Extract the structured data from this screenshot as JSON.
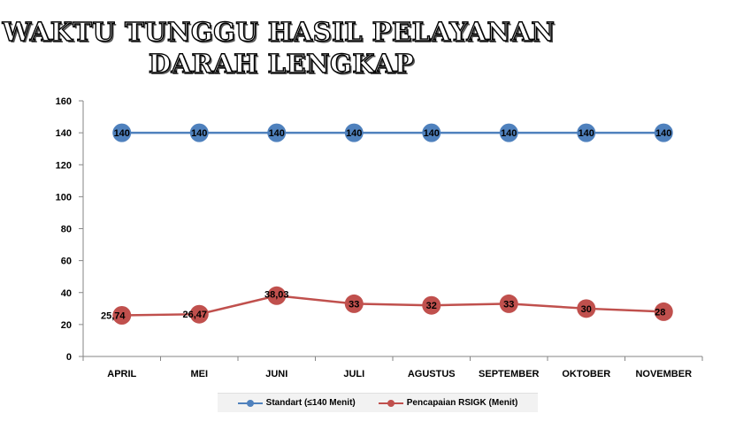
{
  "chart_data": {
    "type": "line",
    "title_lines": [
      "WAKTU TUNGGU HASIL PELAYANAN",
      "DARAH LENGKAP"
    ],
    "categories": [
      "APRIL",
      "MEI",
      "JUNI",
      "JULI",
      "AGUSTUS",
      "SEPTEMBER",
      "OKTOBER",
      "NOVEMBER"
    ],
    "ylim": [
      0,
      160
    ],
    "yticks": [
      "0",
      "20",
      "40",
      "60",
      "80",
      "100",
      "120",
      "140",
      "160"
    ],
    "grid": false,
    "legend_position": "bottom",
    "series": [
      {
        "name": "Standart (≤140 Menit)",
        "color": "#4f81bd",
        "values": [
          140,
          140,
          140,
          140,
          140,
          140,
          140,
          140
        ],
        "labels": [
          "140",
          "140",
          "140",
          "140",
          "140",
          "140",
          "140",
          "140"
        ]
      },
      {
        "name": "Pencapaian RSIGK (Menit)",
        "color": "#c0504d",
        "values": [
          25.74,
          26.47,
          38.03,
          33,
          32,
          33,
          30,
          28
        ],
        "labels": [
          "25,74",
          "26,47",
          "38,03",
          "33",
          "32",
          "33",
          "30",
          "28"
        ]
      }
    ]
  }
}
